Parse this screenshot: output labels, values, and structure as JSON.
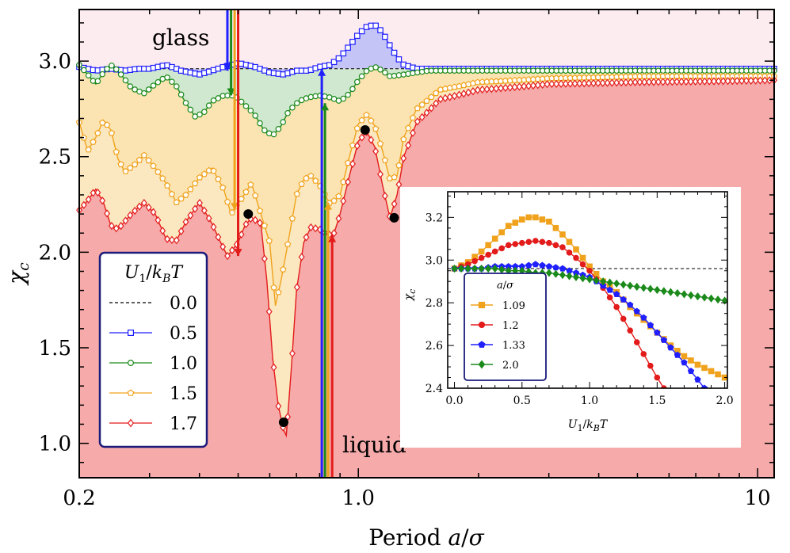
{
  "chart_data": {
    "type": "line",
    "xlabel": "Period a/σ",
    "ylabel": "χ_c",
    "x_scale": "log",
    "xlim": [
      0.2,
      11
    ],
    "ylim": [
      0.82,
      3.27
    ],
    "x_ticks": [
      {
        "v": 0.2,
        "label": "0.2"
      },
      {
        "v": 1.0,
        "label": "1.0"
      },
      {
        "v": 10,
        "label": "10"
      }
    ],
    "y_ticks": [
      {
        "v": 1.0,
        "label": "1.0"
      },
      {
        "v": 1.5,
        "label": "1.5"
      },
      {
        "v": 2.0,
        "label": "2.0"
      },
      {
        "v": 2.5,
        "label": "2.5"
      },
      {
        "v": 3.0,
        "label": "3.0"
      }
    ],
    "legend_title": "U₁/k_BT",
    "legend_position": "lower-left",
    "annotations": {
      "glass": "glass",
      "liquid": "liquid"
    },
    "reference_line": {
      "name": "0.0",
      "y": 2.96,
      "style": "dashed",
      "color": "#000000"
    },
    "series": [
      {
        "name": "0.5",
        "color": "#1f1fff",
        "fill": "#c4c4f6",
        "marker": "square",
        "points": [
          [
            0.2,
            2.97
          ],
          [
            0.22,
            2.95
          ],
          [
            0.24,
            2.96
          ],
          [
            0.26,
            2.95
          ],
          [
            0.28,
            2.96
          ],
          [
            0.3,
            2.96
          ],
          [
            0.33,
            2.98
          ],
          [
            0.36,
            2.95
          ],
          [
            0.4,
            2.93
          ],
          [
            0.43,
            2.95
          ],
          [
            0.46,
            2.97
          ],
          [
            0.5,
            2.99
          ],
          [
            0.55,
            2.97
          ],
          [
            0.6,
            2.94
          ],
          [
            0.65,
            2.93
          ],
          [
            0.7,
            2.95
          ],
          [
            0.75,
            2.95
          ],
          [
            0.8,
            2.97
          ],
          [
            0.85,
            2.98
          ],
          [
            0.9,
            3.02
          ],
          [
            0.95,
            3.08
          ],
          [
            1.0,
            3.14
          ],
          [
            1.05,
            3.18
          ],
          [
            1.1,
            3.19
          ],
          [
            1.15,
            3.15
          ],
          [
            1.2,
            3.08
          ],
          [
            1.25,
            3.02
          ],
          [
            1.3,
            2.98
          ],
          [
            1.4,
            2.96
          ],
          [
            1.6,
            2.96
          ],
          [
            2.0,
            2.96
          ],
          [
            3,
            2.96
          ],
          [
            5,
            2.96
          ],
          [
            8,
            2.96
          ],
          [
            11,
            2.96
          ]
        ]
      },
      {
        "name": "1.0",
        "color": "#1b8a1b",
        "fill": "#cfe8cf",
        "marker": "circle",
        "points": [
          [
            0.2,
            2.98
          ],
          [
            0.21,
            2.93
          ],
          [
            0.22,
            2.88
          ],
          [
            0.23,
            2.94
          ],
          [
            0.24,
            2.98
          ],
          [
            0.25,
            2.95
          ],
          [
            0.27,
            2.86
          ],
          [
            0.29,
            2.83
          ],
          [
            0.31,
            2.88
          ],
          [
            0.33,
            2.92
          ],
          [
            0.35,
            2.87
          ],
          [
            0.37,
            2.78
          ],
          [
            0.39,
            2.71
          ],
          [
            0.41,
            2.73
          ],
          [
            0.43,
            2.79
          ],
          [
            0.46,
            2.82
          ],
          [
            0.49,
            2.82
          ],
          [
            0.52,
            2.77
          ],
          [
            0.55,
            2.72
          ],
          [
            0.58,
            2.64
          ],
          [
            0.61,
            2.61
          ],
          [
            0.64,
            2.66
          ],
          [
            0.67,
            2.74
          ],
          [
            0.71,
            2.79
          ],
          [
            0.75,
            2.81
          ],
          [
            0.8,
            2.82
          ],
          [
            0.85,
            2.81
          ],
          [
            0.9,
            2.79
          ],
          [
            0.95,
            2.83
          ],
          [
            1.0,
            2.9
          ],
          [
            1.05,
            2.95
          ],
          [
            1.1,
            2.97
          ],
          [
            1.15,
            2.95
          ],
          [
            1.2,
            2.92
          ],
          [
            1.3,
            2.93
          ],
          [
            1.5,
            2.95
          ],
          [
            2,
            2.95
          ],
          [
            5,
            2.95
          ],
          [
            11,
            2.95
          ]
        ]
      },
      {
        "name": "1.5",
        "color": "#f0a21c",
        "fill": "#fbe4b2",
        "marker": "pentagon",
        "points": [
          [
            0.2,
            2.68
          ],
          [
            0.21,
            2.53
          ],
          [
            0.22,
            2.6
          ],
          [
            0.23,
            2.69
          ],
          [
            0.24,
            2.64
          ],
          [
            0.25,
            2.49
          ],
          [
            0.26,
            2.42
          ],
          [
            0.28,
            2.47
          ],
          [
            0.29,
            2.51
          ],
          [
            0.31,
            2.44
          ],
          [
            0.33,
            2.36
          ],
          [
            0.35,
            2.26
          ],
          [
            0.37,
            2.3
          ],
          [
            0.4,
            2.39
          ],
          [
            0.43,
            2.44
          ],
          [
            0.46,
            2.33
          ],
          [
            0.48,
            2.2
          ],
          [
            0.51,
            2.28
          ],
          [
            0.54,
            2.36
          ],
          [
            0.57,
            2.2
          ],
          [
            0.6,
            2.05
          ],
          [
            0.62,
            1.72
          ],
          [
            0.64,
            1.85
          ],
          [
            0.66,
            2.0
          ],
          [
            0.68,
            2.15
          ],
          [
            0.7,
            2.3
          ],
          [
            0.73,
            2.38
          ],
          [
            0.76,
            2.4
          ],
          [
            0.8,
            2.35
          ],
          [
            0.85,
            2.25
          ],
          [
            0.9,
            2.3
          ],
          [
            0.95,
            2.5
          ],
          [
            1.0,
            2.67
          ],
          [
            1.05,
            2.72
          ],
          [
            1.1,
            2.66
          ],
          [
            1.15,
            2.53
          ],
          [
            1.2,
            2.38
          ],
          [
            1.25,
            2.4
          ],
          [
            1.3,
            2.6
          ],
          [
            1.4,
            2.75
          ],
          [
            1.6,
            2.85
          ],
          [
            2,
            2.89
          ],
          [
            3,
            2.91
          ],
          [
            5,
            2.92
          ],
          [
            11,
            2.92
          ]
        ]
      },
      {
        "name": "1.7",
        "color": "#e31b1b",
        "fill": "#f6aaaa",
        "marker": "diamond",
        "points": [
          [
            0.2,
            2.22
          ],
          [
            0.21,
            2.27
          ],
          [
            0.22,
            2.33
          ],
          [
            0.23,
            2.26
          ],
          [
            0.24,
            2.14
          ],
          [
            0.25,
            2.12
          ],
          [
            0.27,
            2.2
          ],
          [
            0.29,
            2.26
          ],
          [
            0.31,
            2.2
          ],
          [
            0.33,
            2.07
          ],
          [
            0.35,
            2.06
          ],
          [
            0.37,
            2.16
          ],
          [
            0.4,
            2.26
          ],
          [
            0.43,
            2.15
          ],
          [
            0.45,
            2.06
          ],
          [
            0.47,
            1.98
          ],
          [
            0.5,
            2.05
          ],
          [
            0.52,
            2.14
          ],
          [
            0.54,
            2.18
          ],
          [
            0.57,
            2.15
          ],
          [
            0.59,
            1.85
          ],
          [
            0.61,
            1.45
          ],
          [
            0.63,
            1.2
          ],
          [
            0.65,
            1.07
          ],
          [
            0.66,
            1.04
          ],
          [
            0.68,
            1.4
          ],
          [
            0.7,
            1.8
          ],
          [
            0.73,
            2.05
          ],
          [
            0.76,
            2.13
          ],
          [
            0.8,
            2.12
          ],
          [
            0.84,
            2.09
          ],
          [
            0.87,
            2.1
          ],
          [
            0.9,
            2.2
          ],
          [
            0.95,
            2.4
          ],
          [
            1.0,
            2.58
          ],
          [
            1.05,
            2.63
          ],
          [
            1.1,
            2.55
          ],
          [
            1.15,
            2.35
          ],
          [
            1.2,
            2.18
          ],
          [
            1.25,
            2.3
          ],
          [
            1.3,
            2.5
          ],
          [
            1.4,
            2.68
          ],
          [
            1.6,
            2.8
          ],
          [
            2,
            2.85
          ],
          [
            3,
            2.88
          ],
          [
            5,
            2.89
          ],
          [
            11,
            2.9
          ]
        ]
      }
    ],
    "black_dots": [
      [
        0.53,
        2.2
      ],
      [
        0.65,
        1.11
      ],
      [
        1.04,
        2.64
      ],
      [
        1.23,
        2.18
      ]
    ],
    "arrows_down": [
      {
        "x": 0.47,
        "y_from": 3.27,
        "y_to": 2.95,
        "color": "#1f1fff"
      },
      {
        "x": 0.48,
        "y_from": 3.27,
        "y_to": 2.82,
        "color": "#1b8a1b"
      },
      {
        "x": 0.49,
        "y_from": 3.27,
        "y_to": 2.22,
        "color": "#f0a21c"
      },
      {
        "x": 0.5,
        "y_from": 3.27,
        "y_to": 1.98,
        "color": "#e31b1b"
      }
    ],
    "arrows_up": [
      {
        "x": 0.81,
        "y_from": 0.82,
        "y_to": 2.96,
        "color": "#1f1fff"
      },
      {
        "x": 0.825,
        "y_from": 0.82,
        "y_to": 2.78,
        "color": "#1b8a1b"
      },
      {
        "x": 0.84,
        "y_from": 0.82,
        "y_to": 2.26,
        "color": "#f0a21c"
      },
      {
        "x": 0.86,
        "y_from": 0.82,
        "y_to": 2.09,
        "color": "#e31b1b"
      }
    ],
    "inset": {
      "type": "line",
      "xlabel": "U₁/k_BT",
      "ylabel": "χ_c",
      "xlim": [
        -0.05,
        2.02
      ],
      "ylim": [
        2.4,
        3.32
      ],
      "x_ticks": [
        {
          "v": 0.0,
          "label": "0.0"
        },
        {
          "v": 0.5,
          "label": "0.5"
        },
        {
          "v": 1.0,
          "label": "1.0"
        },
        {
          "v": 1.5,
          "label": "1.5"
        },
        {
          "v": 2.0,
          "label": "2.0"
        }
      ],
      "y_ticks": [
        {
          "v": 2.4,
          "label": "2.4"
        },
        {
          "v": 2.6,
          "label": "2.6"
        },
        {
          "v": 2.8,
          "label": "2.8"
        },
        {
          "v": 3.0,
          "label": "3.0"
        },
        {
          "v": 3.2,
          "label": "3.2"
        }
      ],
      "reference_line": {
        "y": 2.96,
        "style": "dashed"
      },
      "legend_title": "a/σ",
      "legend_position": "lower-left",
      "series": [
        {
          "name": "1.09",
          "color": "#f0a21c",
          "marker": "square",
          "points": [
            [
              0,
              2.96
            ],
            [
              0.1,
              2.99
            ],
            [
              0.2,
              3.04
            ],
            [
              0.3,
              3.1
            ],
            [
              0.4,
              3.16
            ],
            [
              0.5,
              3.19
            ],
            [
              0.55,
              3.2
            ],
            [
              0.6,
              3.2
            ],
            [
              0.7,
              3.18
            ],
            [
              0.8,
              3.12
            ],
            [
              0.9,
              3.05
            ],
            [
              1.0,
              2.97
            ],
            [
              1.1,
              2.9
            ],
            [
              1.2,
              2.85
            ],
            [
              1.3,
              2.78
            ],
            [
              1.4,
              2.72
            ],
            [
              1.5,
              2.66
            ],
            [
              1.6,
              2.6
            ],
            [
              1.7,
              2.55
            ],
            [
              1.8,
              2.51
            ],
            [
              1.9,
              2.48
            ],
            [
              2.0,
              2.45
            ]
          ]
        },
        {
          "name": "1.2",
          "color": "#e31b1b",
          "marker": "circle",
          "points": [
            [
              0,
              2.96
            ],
            [
              0.1,
              2.98
            ],
            [
              0.2,
              3.01
            ],
            [
              0.3,
              3.04
            ],
            [
              0.4,
              3.07
            ],
            [
              0.5,
              3.08
            ],
            [
              0.6,
              3.09
            ],
            [
              0.7,
              3.08
            ],
            [
              0.8,
              3.06
            ],
            [
              0.9,
              3.01
            ],
            [
              1.0,
              2.95
            ],
            [
              1.1,
              2.87
            ],
            [
              1.2,
              2.78
            ],
            [
              1.3,
              2.67
            ],
            [
              1.4,
              2.56
            ],
            [
              1.5,
              2.45
            ],
            [
              1.57,
              2.38
            ]
          ]
        },
        {
          "name": "1.33",
          "color": "#1f1fff",
          "marker": "pentagon",
          "points": [
            [
              0,
              2.96
            ],
            [
              0.1,
              2.96
            ],
            [
              0.2,
              2.96
            ],
            [
              0.3,
              2.97
            ],
            [
              0.4,
              2.97
            ],
            [
              0.5,
              2.97
            ],
            [
              0.6,
              2.98
            ],
            [
              0.7,
              2.97
            ],
            [
              0.8,
              2.96
            ],
            [
              0.9,
              2.94
            ],
            [
              1.0,
              2.92
            ],
            [
              1.1,
              2.88
            ],
            [
              1.2,
              2.84
            ],
            [
              1.3,
              2.79
            ],
            [
              1.4,
              2.73
            ],
            [
              1.5,
              2.66
            ],
            [
              1.6,
              2.59
            ],
            [
              1.7,
              2.52
            ],
            [
              1.8,
              2.44
            ],
            [
              1.85,
              2.4
            ]
          ]
        },
        {
          "name": "2.0",
          "color": "#1b8a1b",
          "marker": "diamond",
          "points": [
            [
              0,
              2.96
            ],
            [
              0.1,
              2.96
            ],
            [
              0.2,
              2.96
            ],
            [
              0.3,
              2.96
            ],
            [
              0.4,
              2.95
            ],
            [
              0.5,
              2.95
            ],
            [
              0.6,
              2.94
            ],
            [
              0.7,
              2.94
            ],
            [
              0.8,
              2.93
            ],
            [
              0.9,
              2.92
            ],
            [
              1.0,
              2.91
            ],
            [
              1.1,
              2.9
            ],
            [
              1.2,
              2.89
            ],
            [
              1.3,
              2.88
            ],
            [
              1.4,
              2.87
            ],
            [
              1.5,
              2.86
            ],
            [
              1.6,
              2.85
            ],
            [
              1.7,
              2.84
            ],
            [
              1.8,
              2.83
            ],
            [
              1.9,
              2.82
            ],
            [
              2.0,
              2.81
            ]
          ]
        }
      ]
    }
  }
}
